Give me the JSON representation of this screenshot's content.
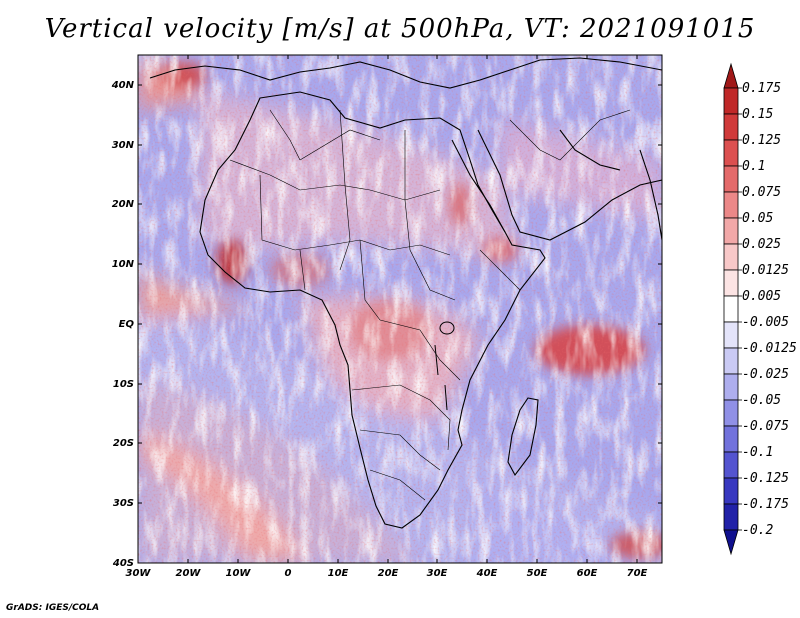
{
  "title": "Vertical velocity [m/s] at 500hPa, VT: 2021091015",
  "credit": "GrADS: IGES/COLA",
  "lat_labels": [
    "40N",
    "30N",
    "20N",
    "10N",
    "EQ",
    "10S",
    "20S",
    "30S",
    "40S"
  ],
  "lon_labels": [
    "30W",
    "20W",
    "10W",
    "0",
    "10E",
    "20E",
    "30E",
    "40E",
    "50E",
    "60E",
    "70E"
  ],
  "colorbar": {
    "labels": [
      "0.175",
      "0.15",
      "0.125",
      "0.1",
      "0.075",
      "0.05",
      "0.025",
      "0.0125",
      "0.005",
      "-0.005",
      "-0.0125",
      "-0.025",
      "-0.05",
      "-0.075",
      "-0.1",
      "-0.125",
      "-0.175",
      "-0.2"
    ],
    "colors": [
      "#a01818",
      "#c02828",
      "#d03a3a",
      "#dc5050",
      "#e46a6a",
      "#ec8888",
      "#f2a8a8",
      "#f8c8c8",
      "#fce4e4",
      "#ffffff",
      "#e4e4fa",
      "#cacaf4",
      "#aeaeee",
      "#9090e6",
      "#7272dc",
      "#5454d0",
      "#3838c0",
      "#2222a8",
      "#10108e"
    ]
  },
  "colors": {
    "positive_accent": "#d83030",
    "negative_accent": "#6a6ae0",
    "coast": "#000000"
  }
}
